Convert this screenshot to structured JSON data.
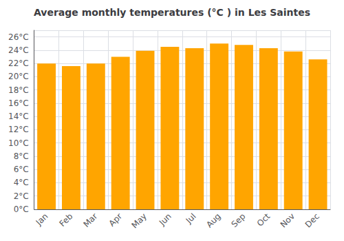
{
  "chart_data": {
    "type": "bar",
    "title": "Average monthly temperatures (°C ) in Les Saintes",
    "categories": [
      "Jan",
      "Feb",
      "Mar",
      "Apr",
      "May",
      "Jun",
      "Jul",
      "Aug",
      "Sep",
      "Oct",
      "Nov",
      "Dec"
    ],
    "values": [
      22.0,
      21.6,
      22.0,
      23.0,
      23.9,
      24.5,
      24.3,
      25.0,
      24.8,
      24.3,
      23.8,
      22.6
    ],
    "color": "#FFA500",
    "ylim": [
      0,
      27
    ],
    "yticks": [
      {
        "value": 0,
        "label": "0°C"
      },
      {
        "value": 2,
        "label": "2°C"
      },
      {
        "value": 4,
        "label": "4°C"
      },
      {
        "value": 6,
        "label": "6°C"
      },
      {
        "value": 8,
        "label": "8°C"
      },
      {
        "value": 10,
        "label": "10°C"
      },
      {
        "value": 12,
        "label": "12°C"
      },
      {
        "value": 14,
        "label": "14°C"
      },
      {
        "value": 16,
        "label": "16°C"
      },
      {
        "value": 18,
        "label": "18°C"
      },
      {
        "value": 20,
        "label": "20°C"
      },
      {
        "value": 22,
        "label": "22°C"
      },
      {
        "value": 24,
        "label": "24°C"
      },
      {
        "value": 26,
        "label": "26°C"
      }
    ],
    "grid": true
  }
}
